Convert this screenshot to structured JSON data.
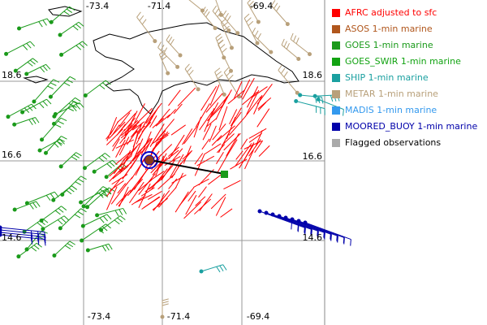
{
  "map": {
    "lon_labels_top": [
      "-73.4",
      "-71.4",
      "-69.4"
    ],
    "lon_labels_bottom": [
      "-73.4",
      "-71.4",
      "-69.4"
    ],
    "lat_labels_left": [
      "18.6",
      "16.6",
      "14.6"
    ],
    "lat_labels_right": [
      "18.6",
      "16.6",
      "14.6"
    ]
  },
  "legend": [
    {
      "label": "AFRC adjusted to sfc",
      "color": "#ff0000"
    },
    {
      "label": "ASOS 1-min marine",
      "color": "#b0561c"
    },
    {
      "label": "GOES 1-min marine",
      "color": "#1a9a1a"
    },
    {
      "label": "GOES_SWIR 1-min marine",
      "color": "#12a312"
    },
    {
      "label": "SHIP 1-min marine",
      "color": "#1aa0a0"
    },
    {
      "label": "METAR 1-min marine",
      "color": "#b8a07a"
    },
    {
      "label": "MADIS 1-min marine",
      "color": "#3399ee"
    },
    {
      "label": "MOORED_BUOY 1-min marine",
      "color": "#0000aa"
    },
    {
      "label": "Flagged observations",
      "color": "#aaaaaa"
    }
  ]
}
